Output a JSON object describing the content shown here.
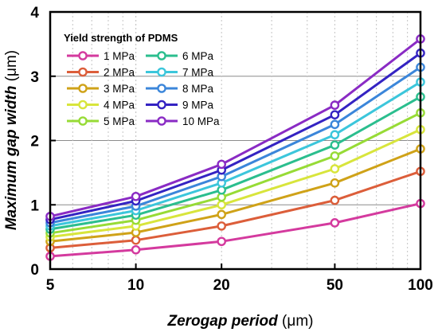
{
  "chart_data": {
    "type": "line",
    "x": [
      5,
      10,
      20,
      50,
      100
    ],
    "xscale": "log",
    "xlim": [
      5,
      100
    ],
    "ylim": [
      0,
      4
    ],
    "xticks": [
      "5",
      "10",
      "20",
      "50",
      "100"
    ],
    "yticks": [
      "0",
      "1",
      "2",
      "3",
      "4"
    ],
    "xlabel": {
      "main": "Zerogap period",
      "unit": " (μm)"
    },
    "ylabel": {
      "main": "Maximum gap width",
      "unit": " (μm)"
    },
    "grid": "horizontal major, dotted vertical minor",
    "legend": {
      "title": "Yield strength of PDMS",
      "placement": "top-left",
      "columns": 2
    },
    "series": [
      {
        "name": "1 MPa",
        "color": "#D43A9E",
        "values": [
          0.2,
          0.3,
          0.43,
          0.72,
          1.02
        ]
      },
      {
        "name": "2 MPa",
        "color": "#DC5E3A",
        "values": [
          0.33,
          0.45,
          0.67,
          1.07,
          1.52
        ]
      },
      {
        "name": "3 MPa",
        "color": "#CFA218",
        "values": [
          0.43,
          0.57,
          0.85,
          1.34,
          1.87
        ]
      },
      {
        "name": "4 MPa",
        "color": "#D8E53C",
        "values": [
          0.5,
          0.67,
          1.0,
          1.56,
          2.17
        ]
      },
      {
        "name": "5 MPa",
        "color": "#97DB36",
        "values": [
          0.56,
          0.76,
          1.12,
          1.76,
          2.43
        ]
      },
      {
        "name": "6 MPa",
        "color": "#2BBE8E",
        "values": [
          0.62,
          0.84,
          1.23,
          1.93,
          2.68
        ]
      },
      {
        "name": "7 MPa",
        "color": "#3CC6DB",
        "values": [
          0.67,
          0.91,
          1.34,
          2.09,
          2.91
        ]
      },
      {
        "name": "8 MPa",
        "color": "#3B86DA",
        "values": [
          0.72,
          0.98,
          1.44,
          2.25,
          3.14
        ]
      },
      {
        "name": "9 MPa",
        "color": "#3423C2",
        "values": [
          0.77,
          1.06,
          1.54,
          2.4,
          3.36
        ]
      },
      {
        "name": "10 MPa",
        "color": "#8A2BC4",
        "values": [
          0.82,
          1.13,
          1.63,
          2.55,
          3.58
        ]
      }
    ]
  }
}
